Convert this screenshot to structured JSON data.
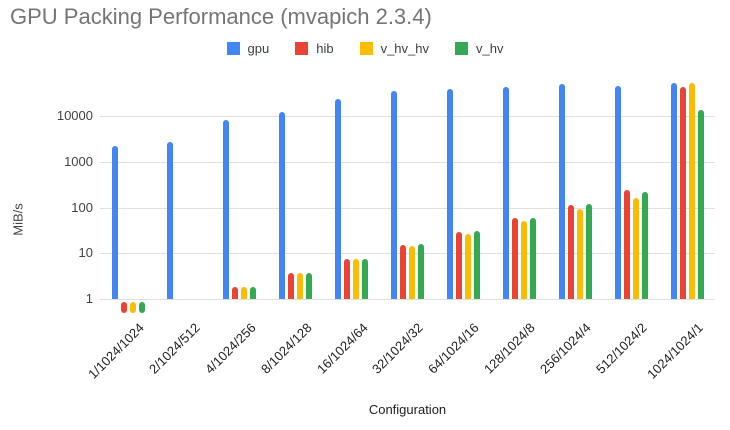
{
  "chart_data": {
    "type": "bar",
    "title": "GPU Packing Performance (mvapich 2.3.4)",
    "xlabel": "Configuration",
    "ylabel": "MiB/s",
    "y_scale": "log",
    "ylim": [
      0.5,
      75000
    ],
    "yticks": [
      1,
      10,
      100,
      1000,
      10000
    ],
    "grid": "horizontal",
    "legend_position": "top",
    "categories": [
      "1/1024/1024",
      "2/1024/512",
      "4/1024/256",
      "8/1024/128",
      "16/1024/64",
      "32/1024/32",
      "64/1024/16",
      "128/1024/8",
      "256/1024/4",
      "512/1024/2",
      "1024/1024/1"
    ],
    "series": [
      {
        "name": "gpu",
        "color": "#4285F4",
        "values": [
          2200,
          2700,
          8200,
          12600,
          23500,
          35000,
          40000,
          43000,
          50000,
          44500,
          53500
        ]
      },
      {
        "name": "hib",
        "color": "#EA4335",
        "values": [
          0.85,
          null,
          1.9,
          3.8,
          7.5,
          15.5,
          30,
          61,
          117,
          245,
          43000
        ]
      },
      {
        "name": "v_hv_hv",
        "color": "#FBBC04",
        "values": [
          0.85,
          null,
          1.9,
          3.8,
          7.4,
          14.5,
          27,
          52,
          95,
          165,
          54000
        ]
      },
      {
        "name": "v_hv",
        "color": "#34A853",
        "values": [
          0.85,
          null,
          1.9,
          3.8,
          7.6,
          16,
          31,
          60,
          122,
          222,
          13300
        ]
      }
    ]
  }
}
